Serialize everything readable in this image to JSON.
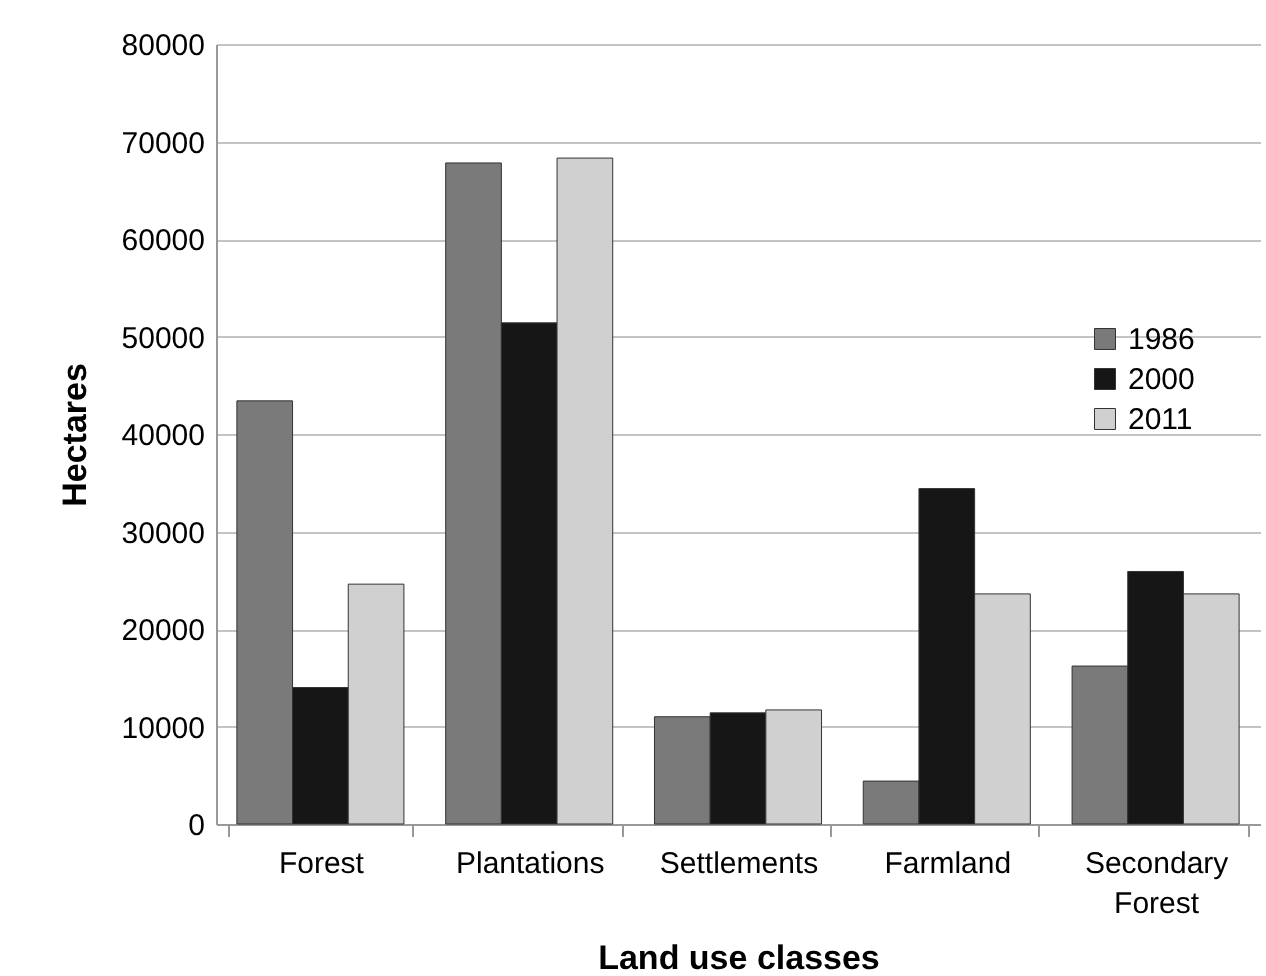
{
  "chart_data": {
    "type": "bar",
    "xlabel": "Land use classes",
    "ylabel": "Hectares",
    "categories": [
      "Forest",
      "Plantations",
      "Settlements",
      "Farmland",
      "Secondary Forest"
    ],
    "series": [
      {
        "name": "1986",
        "color": "#7a7a7a",
        "values": [
          43400,
          67800,
          11000,
          4400,
          16200
        ]
      },
      {
        "name": "2000",
        "color": "#161616",
        "values": [
          14000,
          51400,
          11400,
          34400,
          25900
        ]
      },
      {
        "name": "2011",
        "color": "#d0d0d0",
        "values": [
          24600,
          68300,
          11700,
          23600,
          23600
        ]
      }
    ],
    "ylim": [
      0,
      80000
    ],
    "yticks": [
      0,
      10000,
      20000,
      30000,
      40000,
      50000,
      60000,
      70000,
      80000
    ],
    "grid": "y",
    "legend": "right"
  }
}
